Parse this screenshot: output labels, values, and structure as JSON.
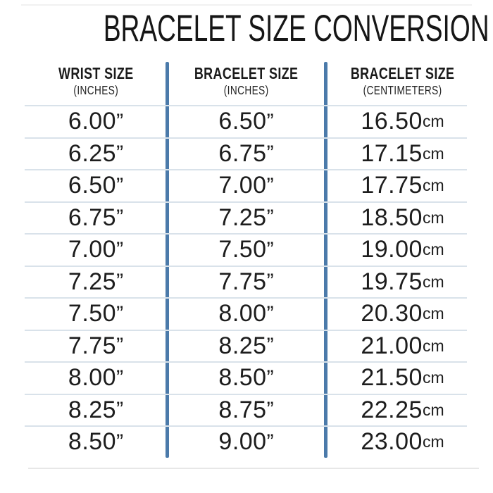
{
  "title": "BRACELET SIZE CONVERSION CHART",
  "units": {
    "inches_symbol": "”",
    "cm_suffix": "cm"
  },
  "colors": {
    "divider_blue": "#4b7aaa",
    "row_line": "#d9e2ea",
    "text": "#1d1d1d"
  },
  "table": {
    "columns": [
      {
        "label": "WRIST SIZE",
        "sublabel": "(INCHES)"
      },
      {
        "label": "BRACELET SIZE",
        "sublabel": "(INCHES)"
      },
      {
        "label": "BRACELET SIZE",
        "sublabel": "(CENTIMETERS)"
      }
    ],
    "rows": [
      {
        "wrist_in": "6.00",
        "bracelet_in": "6.50",
        "bracelet_cm": "16.50"
      },
      {
        "wrist_in": "6.25",
        "bracelet_in": "6.75",
        "bracelet_cm": "17.15"
      },
      {
        "wrist_in": "6.50",
        "bracelet_in": "7.00",
        "bracelet_cm": "17.75"
      },
      {
        "wrist_in": "6.75",
        "bracelet_in": "7.25",
        "bracelet_cm": "18.50"
      },
      {
        "wrist_in": "7.00",
        "bracelet_in": "7.50",
        "bracelet_cm": "19.00"
      },
      {
        "wrist_in": "7.25",
        "bracelet_in": "7.75",
        "bracelet_cm": "19.75"
      },
      {
        "wrist_in": "7.50",
        "bracelet_in": "8.00",
        "bracelet_cm": "20.30"
      },
      {
        "wrist_in": "7.75",
        "bracelet_in": "8.25",
        "bracelet_cm": "21.00"
      },
      {
        "wrist_in": "8.00",
        "bracelet_in": "8.50",
        "bracelet_cm": "21.50"
      },
      {
        "wrist_in": "8.25",
        "bracelet_in": "8.75",
        "bracelet_cm": "22.25"
      },
      {
        "wrist_in": "8.50",
        "bracelet_in": "9.00",
        "bracelet_cm": "23.00"
      }
    ]
  },
  "chart_data": {
    "type": "table",
    "title": "BRACELET SIZE CONVERSION CHART",
    "columns": [
      "WRIST SIZE (INCHES)",
      "BRACELET SIZE (INCHES)",
      "BRACELET SIZE (CENTIMETERS)"
    ],
    "rows": [
      [
        6.0,
        6.5,
        16.5
      ],
      [
        6.25,
        6.75,
        17.15
      ],
      [
        6.5,
        7.0,
        17.75
      ],
      [
        6.75,
        7.25,
        18.5
      ],
      [
        7.0,
        7.5,
        19.0
      ],
      [
        7.25,
        7.75,
        19.75
      ],
      [
        7.5,
        8.0,
        20.3
      ],
      [
        7.75,
        8.25,
        21.0
      ],
      [
        8.0,
        8.5,
        21.5
      ],
      [
        8.25,
        8.75,
        22.25
      ],
      [
        8.5,
        9.0,
        23.0
      ]
    ],
    "layout": {
      "column_dividers": "vertical blue bars",
      "row_grid": "light horizontal rules",
      "legend": "none"
    }
  }
}
